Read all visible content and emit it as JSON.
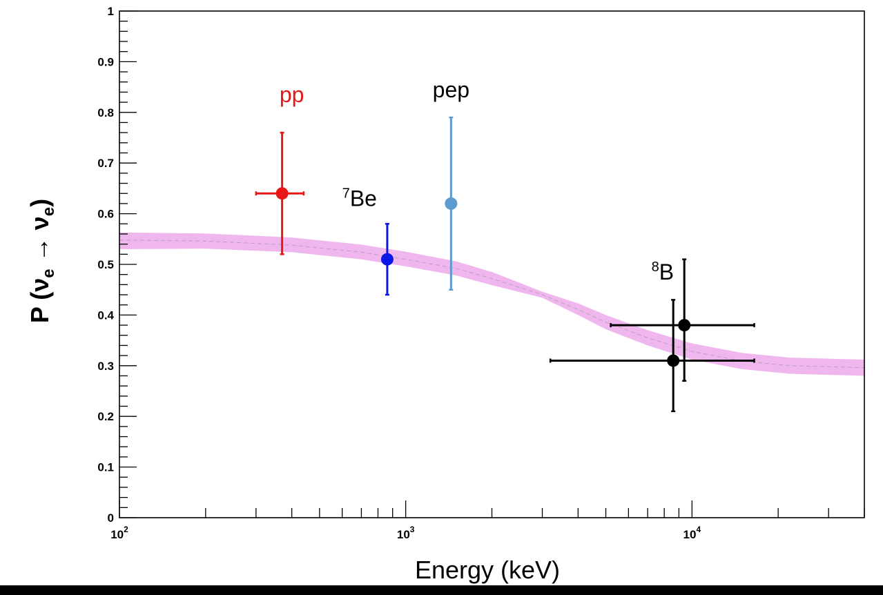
{
  "chart_data": {
    "type": "scatter",
    "title": "",
    "xlabel": "Energy (keV)",
    "ylabel": {
      "prefix": "P (",
      "nu": "ν",
      "sub1": "e",
      "arrow": " → ",
      "nu2": "ν",
      "sub2": "e",
      "suffix": ")"
    },
    "xscale": "log",
    "xlim": [
      100,
      40000
    ],
    "ylim": [
      0,
      1
    ],
    "grid": false,
    "x_tick_labels": [
      {
        "value": 100,
        "base": "10",
        "exp": "2"
      },
      {
        "value": 1000,
        "base": "10",
        "exp": "3"
      },
      {
        "value": 10000,
        "base": "10",
        "exp": "4"
      }
    ],
    "y_ticks": [
      0,
      0.1,
      0.2,
      0.3,
      0.4,
      0.5,
      0.6,
      0.7,
      0.8,
      0.9,
      1
    ],
    "y_tick_labels": [
      "0",
      "0.1",
      "0.2",
      "0.3",
      "0.4",
      "0.5",
      "0.6",
      "0.7",
      "0.8",
      "0.9",
      "1"
    ],
    "band": {
      "color": "#f0b7ee",
      "line_color": "#b9a0b9",
      "points": [
        {
          "x": 100,
          "y": 0.548,
          "lo": 0.53,
          "hi": 0.563
        },
        {
          "x": 200,
          "y": 0.546,
          "lo": 0.531,
          "hi": 0.561
        },
        {
          "x": 400,
          "y": 0.538,
          "lo": 0.524,
          "hi": 0.553
        },
        {
          "x": 700,
          "y": 0.524,
          "lo": 0.51,
          "hi": 0.539
        },
        {
          "x": 1000,
          "y": 0.51,
          "lo": 0.496,
          "hi": 0.525
        },
        {
          "x": 1500,
          "y": 0.492,
          "lo": 0.478,
          "hi": 0.506
        },
        {
          "x": 2000,
          "y": 0.472,
          "lo": 0.459,
          "hi": 0.485
        },
        {
          "x": 3000,
          "y": 0.44,
          "lo": 0.434,
          "hi": 0.446
        },
        {
          "x": 4000,
          "y": 0.411,
          "lo": 0.4,
          "hi": 0.423
        },
        {
          "x": 5000,
          "y": 0.386,
          "lo": 0.372,
          "hi": 0.4
        },
        {
          "x": 7000,
          "y": 0.355,
          "lo": 0.34,
          "hi": 0.37
        },
        {
          "x": 10000,
          "y": 0.328,
          "lo": 0.312,
          "hi": 0.344
        },
        {
          "x": 15000,
          "y": 0.309,
          "lo": 0.293,
          "hi": 0.325
        },
        {
          "x": 22000,
          "y": 0.3,
          "lo": 0.284,
          "hi": 0.316
        },
        {
          "x": 40000,
          "y": 0.296,
          "lo": 0.28,
          "hi": 0.312
        }
      ]
    },
    "series": [
      {
        "color": "#e81717",
        "points": [
          {
            "x": 370,
            "y": 0.64,
            "xlo": 300,
            "xhi": 440,
            "ylo": 0.52,
            "yhi": 0.76
          }
        ]
      },
      {
        "color": "#0a18e6",
        "points": [
          {
            "x": 862,
            "y": 0.51,
            "xlo": 862,
            "xhi": 862,
            "ylo": 0.44,
            "yhi": 0.58
          }
        ]
      },
      {
        "color": "#5b9bd0",
        "points": [
          {
            "x": 1440,
            "y": 0.62,
            "xlo": 1440,
            "xhi": 1440,
            "ylo": 0.45,
            "yhi": 0.79
          }
        ]
      },
      {
        "color": "#000000",
        "points": [
          {
            "x": 8600,
            "y": 0.31,
            "xlo": 3200,
            "xhi": 16500,
            "ylo": 0.21,
            "yhi": 0.43
          },
          {
            "x": 9400,
            "y": 0.38,
            "xlo": 5200,
            "xhi": 16500,
            "ylo": 0.27,
            "yhi": 0.51
          }
        ]
      }
    ],
    "annotations": [
      {
        "sup": "",
        "text": "pp",
        "color": "#e81717",
        "x": 400,
        "y": 0.82
      },
      {
        "sup": "7",
        "text": "Be",
        "color": "#000000",
        "x": 690,
        "y": 0.615
      },
      {
        "sup": "",
        "text": "pep",
        "color": "#000000",
        "x": 1440,
        "y": 0.83
      },
      {
        "sup": "8",
        "text": "B",
        "color": "#000000",
        "x": 7900,
        "y": 0.47
      }
    ]
  }
}
